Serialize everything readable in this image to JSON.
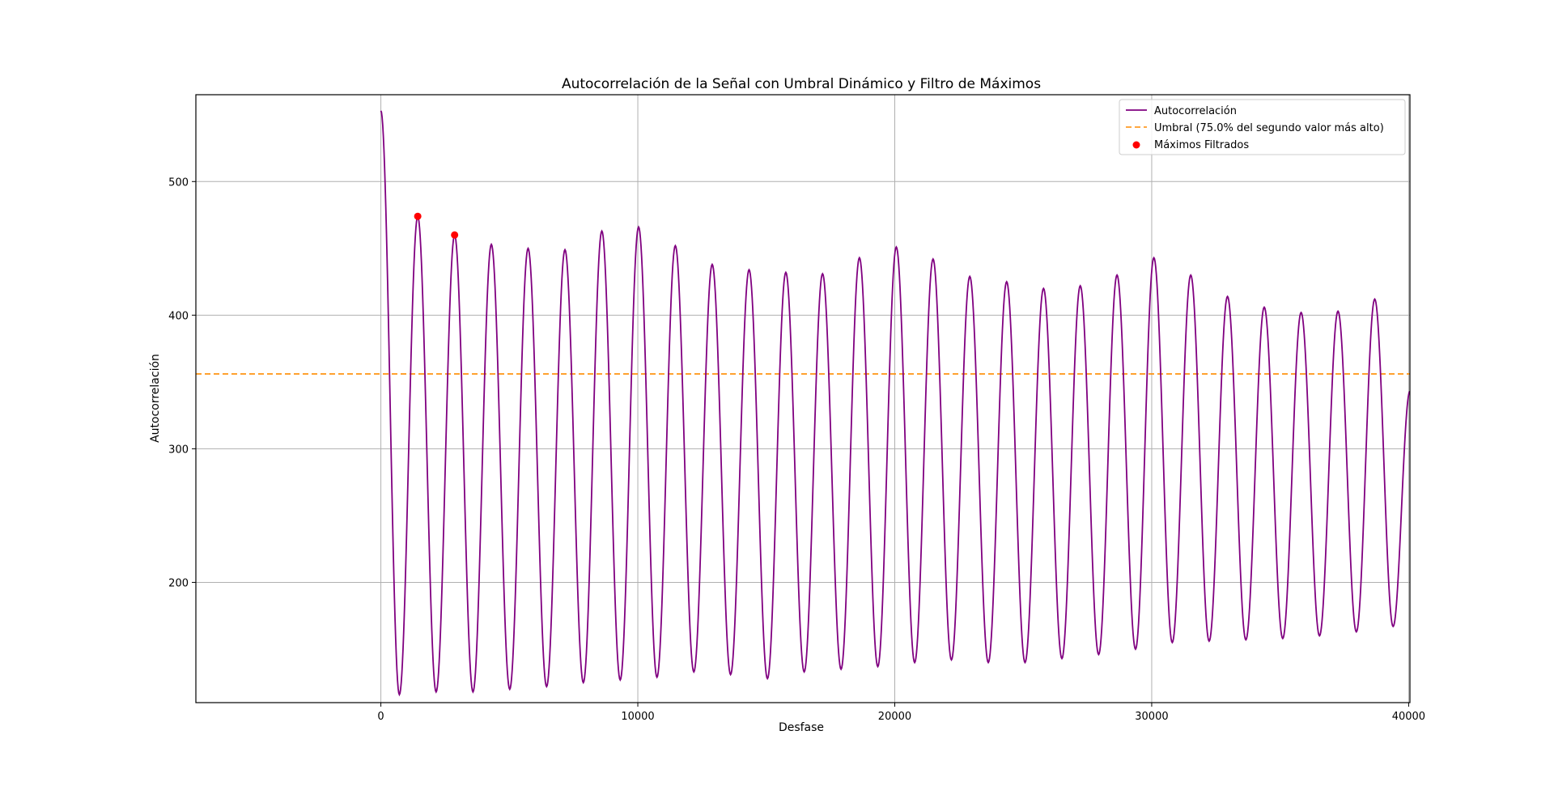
{
  "chart_data": {
    "type": "line",
    "title": "Autocorrelación de la Señal con Umbral Dinámico y Filtro de Máximos",
    "xlabel": "Desfase",
    "ylabel": "Autocorrelación",
    "xlim": [
      -7200,
      40050
    ],
    "ylim": [
      110,
      565
    ],
    "xticks": [
      0,
      10000,
      20000,
      30000,
      40000
    ],
    "xtick_labels": [
      "0",
      "10000",
      "20000",
      "30000",
      "40000"
    ],
    "yticks": [
      200,
      300,
      400,
      500
    ],
    "ytick_labels": [
      "200",
      "300",
      "400",
      "500"
    ],
    "grid": true,
    "legend_position": "top-right",
    "colors": {
      "autocorrelation": "#800080",
      "threshold": "#ff8c00",
      "maxima": "#ff0000"
    },
    "legend": [
      {
        "label": "Autocorrelación",
        "kind": "line"
      },
      {
        "label": "Umbral (75.0% del segundo valor más alto)",
        "kind": "dashed"
      },
      {
        "label": "Máximos Filtrados",
        "kind": "marker"
      }
    ],
    "threshold": 356,
    "peaks": [
      [
        0,
        553
      ],
      [
        1435,
        474
      ],
      [
        2870,
        460
      ],
      [
        4300,
        453
      ],
      [
        5730,
        450
      ],
      [
        7165,
        449
      ],
      [
        8600,
        463
      ],
      [
        10030,
        466
      ],
      [
        11460,
        452
      ],
      [
        12895,
        438
      ],
      [
        14330,
        434
      ],
      [
        15760,
        432
      ],
      [
        17190,
        431
      ],
      [
        18625,
        443
      ],
      [
        20060,
        451
      ],
      [
        21490,
        442
      ],
      [
        22920,
        429
      ],
      [
        24355,
        425
      ],
      [
        25790,
        420
      ],
      [
        27220,
        422
      ],
      [
        28650,
        430
      ],
      [
        30085,
        443
      ],
      [
        31520,
        430
      ],
      [
        32950,
        414
      ],
      [
        34380,
        406
      ],
      [
        35815,
        402
      ],
      [
        37250,
        403
      ],
      [
        38680,
        412
      ]
    ],
    "troughs": [
      [
        720,
        116
      ],
      [
        2150,
        118
      ],
      [
        3585,
        118
      ],
      [
        5015,
        120
      ],
      [
        6450,
        122
      ],
      [
        7880,
        125
      ],
      [
        9315,
        127
      ],
      [
        10745,
        129
      ],
      [
        12180,
        133
      ],
      [
        13610,
        131
      ],
      [
        15045,
        128
      ],
      [
        16475,
        133
      ],
      [
        17910,
        135
      ],
      [
        19340,
        137
      ],
      [
        20775,
        140
      ],
      [
        22205,
        142
      ],
      [
        23640,
        140
      ],
      [
        25070,
        140
      ],
      [
        26505,
        143
      ],
      [
        27935,
        146
      ],
      [
        29370,
        150
      ],
      [
        30800,
        155
      ],
      [
        32235,
        156
      ],
      [
        33665,
        157
      ],
      [
        35100,
        158
      ],
      [
        36530,
        160
      ],
      [
        37965,
        163
      ],
      [
        39395,
        167
      ]
    ],
    "end_point": [
      40050,
      343
    ],
    "maxima": {
      "x": [
        1435,
        2870
      ],
      "y": [
        474,
        460
      ]
    }
  }
}
